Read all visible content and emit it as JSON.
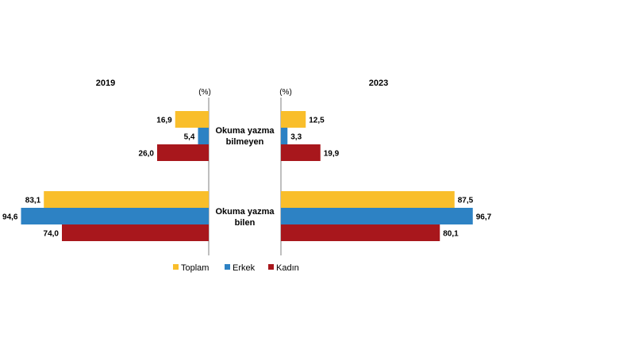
{
  "chart_data": {
    "type": "bar",
    "orientation": "horizontal",
    "panels": [
      {
        "title": "2019",
        "unit": "(%)",
        "categories": [
          "Okuma yazma bilmeyen",
          "Okuma yazma bilen"
        ],
        "series": [
          {
            "name": "Toplam",
            "values": [
              16.9,
              83.1
            ],
            "labels": [
              "16,9",
              "83,1"
            ]
          },
          {
            "name": "Erkek",
            "values": [
              5.4,
              94.6
            ],
            "labels": [
              "5,4",
              "94,6"
            ]
          },
          {
            "name": "Kadın",
            "values": [
              26.0,
              74.0
            ],
            "labels": [
              "26,0",
              "74,0"
            ]
          }
        ]
      },
      {
        "title": "2023",
        "unit": "(%)",
        "categories": [
          "Okuma yazma bilmeyen",
          "Okuma yazma bilen"
        ],
        "series": [
          {
            "name": "Toplam",
            "values": [
              12.5,
              87.5
            ],
            "labels": [
              "12,5",
              "87,5"
            ]
          },
          {
            "name": "Erkek",
            "values": [
              3.3,
              96.7
            ],
            "labels": [
              "3,3",
              "96,7"
            ]
          },
          {
            "name": "Kadın",
            "values": [
              19.9,
              80.1
            ],
            "labels": [
              "19,9",
              "80,1"
            ]
          }
        ]
      }
    ],
    "category_labels": [
      [
        "Okuma yazma",
        "bilmeyen"
      ],
      [
        "Okuma yazma",
        "bilen"
      ]
    ],
    "legend": [
      "Toplam",
      "Erkek",
      "Kadın"
    ],
    "legend_position": "bottom",
    "colors": {
      "Toplam": "#F9BE2B",
      "Erkek": "#2D82C4",
      "Kadın": "#A8171C"
    },
    "xlim": [
      0,
      100
    ],
    "grid": false
  }
}
